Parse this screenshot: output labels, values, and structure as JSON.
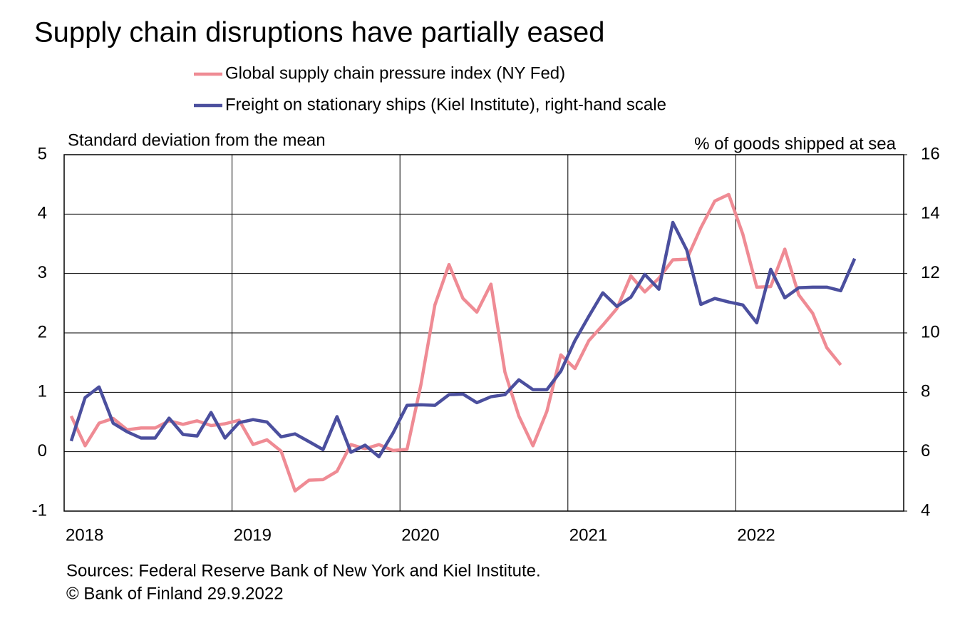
{
  "chart_data": {
    "type": "line",
    "title": "Supply chain disruptions have partially eased",
    "y_label": "Standard deviation from the mean",
    "y2_label": "% of goods shipped at sea",
    "sources": "Sources: Federal Reserve Bank of New York and Kiel Institute.",
    "copyright": "© Bank of Finland 29.9.2022",
    "x": [
      2018.042,
      2018.125,
      2018.208,
      2018.292,
      2018.375,
      2018.458,
      2018.542,
      2018.625,
      2018.708,
      2018.792,
      2018.875,
      2018.958,
      2019.042,
      2019.125,
      2019.208,
      2019.292,
      2019.375,
      2019.458,
      2019.542,
      2019.625,
      2019.708,
      2019.792,
      2019.875,
      2019.958,
      2020.042,
      2020.125,
      2020.208,
      2020.292,
      2020.375,
      2020.458,
      2020.542,
      2020.625,
      2020.708,
      2020.792,
      2020.875,
      2020.958,
      2021.042,
      2021.125,
      2021.208,
      2021.292,
      2021.375,
      2021.458,
      2021.542,
      2021.625,
      2021.708,
      2021.792,
      2021.875,
      2021.958,
      2022.042,
      2022.125,
      2022.208,
      2022.292,
      2022.375,
      2022.458,
      2022.542,
      2022.625,
      2022.708
    ],
    "xlim": [
      2018,
      2023
    ],
    "xticks": [
      2018,
      2019,
      2020,
      2021,
      2022
    ],
    "ylim": [
      -1,
      5
    ],
    "yticks": [
      -1,
      0,
      1,
      2,
      3,
      4,
      5
    ],
    "y2lim": [
      4,
      16
    ],
    "y2ticks": [
      4,
      6,
      8,
      10,
      12,
      14,
      16
    ],
    "grid": true,
    "legend": "top",
    "series": [
      {
        "name": "Global supply chain pressure index (NY Fed)",
        "color": "#ef8b94",
        "values": [
          0.6,
          0.1,
          0.48,
          0.56,
          0.37,
          0.4,
          0.4,
          0.52,
          0.46,
          0.52,
          0.44,
          0.47,
          0.53,
          0.12,
          0.2,
          0.01,
          -0.66,
          -0.48,
          -0.47,
          -0.33,
          0.12,
          0.05,
          0.12,
          0.02,
          0.04,
          1.13,
          2.47,
          3.15,
          2.58,
          2.35,
          2.82,
          1.34,
          0.6,
          0.1,
          0.68,
          1.63,
          1.4,
          1.87,
          2.13,
          2.41,
          2.96,
          2.69,
          2.92,
          3.23,
          3.24,
          3.77,
          4.22,
          4.33,
          3.66,
          2.77,
          2.78,
          3.41,
          2.64,
          2.33,
          1.75,
          1.46,
          null
        ]
      },
      {
        "name": "Freight on stationary ships (Kiel Institute), right-hand scale",
        "color": "#4b4f9e",
        "axis": "y2",
        "values": [
          6.36,
          7.82,
          8.18,
          6.96,
          6.67,
          6.46,
          6.46,
          7.13,
          6.58,
          6.53,
          7.32,
          6.46,
          6.98,
          7.08,
          7.0,
          6.5,
          6.6,
          6.34,
          6.07,
          7.18,
          5.98,
          6.22,
          5.83,
          6.62,
          7.56,
          7.58,
          7.56,
          7.92,
          7.94,
          7.65,
          7.85,
          7.92,
          8.42,
          8.09,
          8.09,
          8.71,
          9.74,
          10.56,
          11.35,
          10.89,
          11.2,
          11.97,
          11.47,
          13.72,
          12.79,
          10.96,
          11.16,
          11.04,
          10.94,
          10.34,
          12.14,
          11.18,
          11.52,
          11.54,
          11.54,
          11.42,
          12.5
        ]
      }
    ]
  }
}
